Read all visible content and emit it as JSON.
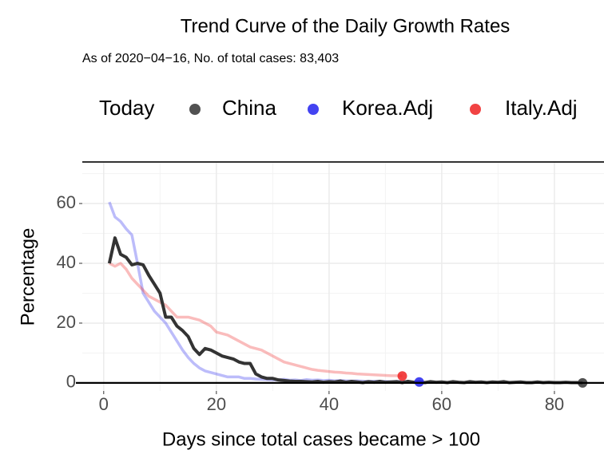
{
  "chart_data": {
    "type": "line",
    "title": "Trend Curve of the Daily Growth Rates",
    "subtitle": "As of 2020−04−16, No. of total cases: 83,403",
    "legend_title": "Today",
    "xlabel": "Days since total cases became > 100",
    "ylabel": "Percentage",
    "xlim": [
      -3.8,
      88.8
    ],
    "ylim": [
      -2.7,
      73.9
    ],
    "xticks": [
      0,
      20,
      40,
      60,
      80
    ],
    "yticks": [
      0,
      20,
      40,
      60
    ],
    "grid": true,
    "series": [
      {
        "name": "China",
        "color": "#333333",
        "x": [
          1,
          2,
          3,
          4,
          5,
          6,
          7,
          8,
          9,
          10,
          11,
          12,
          13,
          14,
          15,
          16,
          17,
          18,
          19,
          20,
          21,
          22,
          23,
          24,
          25,
          26,
          27,
          28,
          29,
          30,
          31,
          32,
          33,
          34,
          35,
          36,
          37,
          38,
          39,
          40,
          41,
          42,
          43,
          44,
          45,
          46,
          47,
          48,
          49,
          50,
          51,
          52,
          53,
          54,
          55,
          56,
          57,
          58,
          59,
          60,
          61,
          62,
          63,
          64,
          65,
          66,
          67,
          68,
          69,
          70,
          71,
          72,
          73,
          74,
          75,
          76,
          77,
          78,
          79,
          80,
          81,
          82,
          83,
          84,
          85
        ],
        "values": [
          40,
          48.5,
          43,
          42,
          39.5,
          40,
          39.5,
          36,
          33,
          30,
          22,
          22,
          19,
          17.5,
          15.5,
          11.5,
          9.5,
          11.5,
          11,
          10,
          9,
          8.5,
          8,
          7,
          6.5,
          6.5,
          3,
          2,
          1.5,
          1.5,
          1,
          0.8,
          0.6,
          0.5,
          0.5,
          0.4,
          0.3,
          0.5,
          0.2,
          0.4,
          0.3,
          0.6,
          0.2,
          0.5,
          0.3,
          0.1,
          0.4,
          0.2,
          0.5,
          0.2,
          0.3,
          0.4,
          0.1,
          0.5,
          0.2,
          0.3,
          0.1,
          0.4,
          0.2,
          0.3,
          0.1,
          0.4,
          0.2,
          0.1,
          0.4,
          0.2,
          0.3,
          0.1,
          0.3,
          0.2,
          0.4,
          0.1,
          0.2,
          0.3,
          0.1,
          0.1,
          0.3,
          0.1,
          0.2,
          0.1,
          0.1,
          0.2,
          0.1,
          0.1,
          0
        ],
        "today_x": 85,
        "today_value": 0
      },
      {
        "name": "Korea.Adj",
        "color": "#2222ee",
        "x": [
          1,
          2,
          3,
          4,
          5,
          6,
          7,
          8,
          9,
          10,
          11,
          12,
          13,
          14,
          15,
          16,
          17,
          18,
          19,
          20,
          21,
          22,
          23,
          24,
          25,
          26,
          27,
          28,
          29,
          30,
          31,
          32,
          33,
          34,
          35,
          36,
          37,
          38,
          39,
          40,
          41,
          42,
          43,
          44,
          45,
          46,
          47,
          48,
          49,
          50,
          51,
          52,
          53,
          54,
          55,
          56
        ],
        "values": [
          60.5,
          55.5,
          54,
          51.5,
          49.5,
          40,
          30,
          27,
          24,
          22,
          20,
          17,
          14,
          11,
          8.5,
          6.5,
          5,
          4,
          3.5,
          3,
          2.5,
          2,
          2,
          2,
          1.5,
          1.5,
          1.3,
          1.2,
          1.1,
          1,
          1,
          1.2,
          0.9,
          1,
          0.8,
          1.1,
          0.9,
          1,
          0.8,
          0.9,
          0.7,
          0.8,
          0.7,
          0.6,
          0.7,
          0.6,
          0.5,
          0.6,
          0.5,
          0.5,
          0.4,
          0.5,
          0.4,
          0.4,
          0.3,
          0.3
        ],
        "today_x": 56,
        "today_value": 0.3
      },
      {
        "name": "Italy.Adj",
        "color": "#ee2222",
        "x": [
          1,
          2,
          3,
          4,
          5,
          6,
          7,
          8,
          9,
          10,
          11,
          12,
          13,
          14,
          15,
          16,
          17,
          18,
          19,
          20,
          21,
          22,
          23,
          24,
          25,
          26,
          27,
          28,
          29,
          30,
          31,
          32,
          33,
          34,
          35,
          36,
          37,
          38,
          39,
          40,
          41,
          42,
          43,
          44,
          45,
          46,
          47,
          48,
          49,
          50,
          51,
          52,
          53
        ],
        "values": [
          40,
          39,
          40,
          38,
          35,
          33,
          31,
          29,
          28,
          27,
          26,
          24,
          22,
          22,
          22,
          21.5,
          21,
          20,
          19,
          17,
          16.5,
          16,
          15,
          14,
          13,
          12,
          11.5,
          11,
          10,
          9,
          8,
          7,
          6.5,
          6,
          5.5,
          5,
          4.5,
          4.2,
          4,
          3.8,
          3.6,
          3.5,
          3.3,
          3.2,
          3,
          2.9,
          2.8,
          2.7,
          2.6,
          2.5,
          2.4,
          2.4,
          2.3
        ],
        "today_x": 53,
        "today_value": 2.3
      }
    ]
  }
}
